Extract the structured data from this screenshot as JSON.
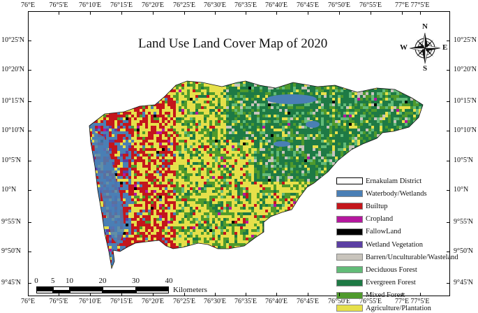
{
  "title": "Land Use Land Cover Map of 2020",
  "lon_ticks": [
    "76°E",
    "76°5'E",
    "76°10'E",
    "76°15'E",
    "76°20'E",
    "76°25'E",
    "76°30'E",
    "76°35'E",
    "76°40'E",
    "76°45'E",
    "76°50'E",
    "76°55'E",
    "77°E",
    "77°5'E"
  ],
  "lat_ticks_left": [
    "10°25'N",
    "10°20'N",
    "10°15'N",
    "10°10'N",
    "10°5'N",
    "10°N",
    "9°55'N",
    "9°50'N",
    "9°45'N"
  ],
  "lat_ticks_right": [
    "10°25'N",
    "10°20'N",
    "10°15'N",
    "10°10'N",
    "10°5'N",
    "10°N",
    "9°55'N",
    "9°50'N",
    "9°45'N"
  ],
  "compass": {
    "n": "N",
    "s": "S",
    "e": "E",
    "w": "W",
    "icon": "north-arrow-compass-icon"
  },
  "legend": [
    {
      "label": "Ernakulam District",
      "color": "#ffffff"
    },
    {
      "label": "Waterbody/Wetlands",
      "color": "#4a7fb5"
    },
    {
      "label": "Builtup",
      "color": "#c4161c"
    },
    {
      "label": "Cropland",
      "color": "#b5179e"
    },
    {
      "label": "FallowLand",
      "color": "#000000"
    },
    {
      "label": "Wetland Vegetation",
      "color": "#5b3fa3"
    },
    {
      "label": "Barren/Unculturable/Wasteland",
      "color": "#c8c4bc"
    },
    {
      "label": "Deciduous Forest",
      "color": "#62bb78"
    },
    {
      "label": "Evergreen Forest",
      "color": "#1e7a45"
    },
    {
      "label": "Mixed Forest",
      "color": "#4f9a2c"
    },
    {
      "label": "Agriculture/Plantation",
      "color": "#e6e04a"
    }
  ],
  "scale_bar": {
    "labels": [
      "0",
      "5",
      "10",
      "20",
      "30",
      "40"
    ],
    "values": [
      0,
      5,
      10,
      20,
      30,
      40
    ],
    "units": "Kilometers"
  }
}
